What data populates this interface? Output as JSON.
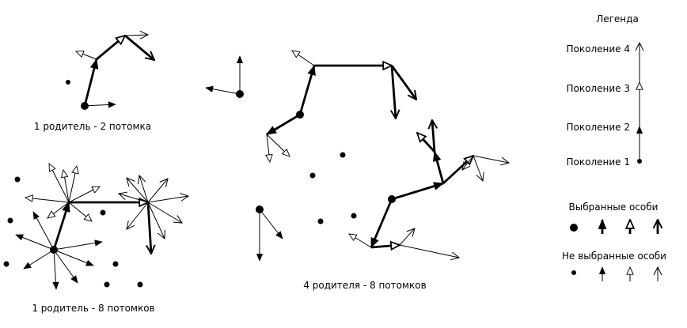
{
  "diagram": {
    "labels": {
      "one_parent_two": "1 родитель - 2 потомка",
      "one_parent_eight": "1 родитель - 8 потомков",
      "four_parents_eight": "4 родителя - 8 потомков"
    },
    "legend": {
      "title": "Легенда",
      "generations": [
        "Поколение 4",
        "Поколение 3",
        "Поколение 2",
        "Поколение 1"
      ],
      "selected_title": "Выбранные особи",
      "not_selected_title": "Не выбранные особи"
    },
    "colors": {
      "ink": "#000000",
      "background": "#ffffff"
    }
  }
}
